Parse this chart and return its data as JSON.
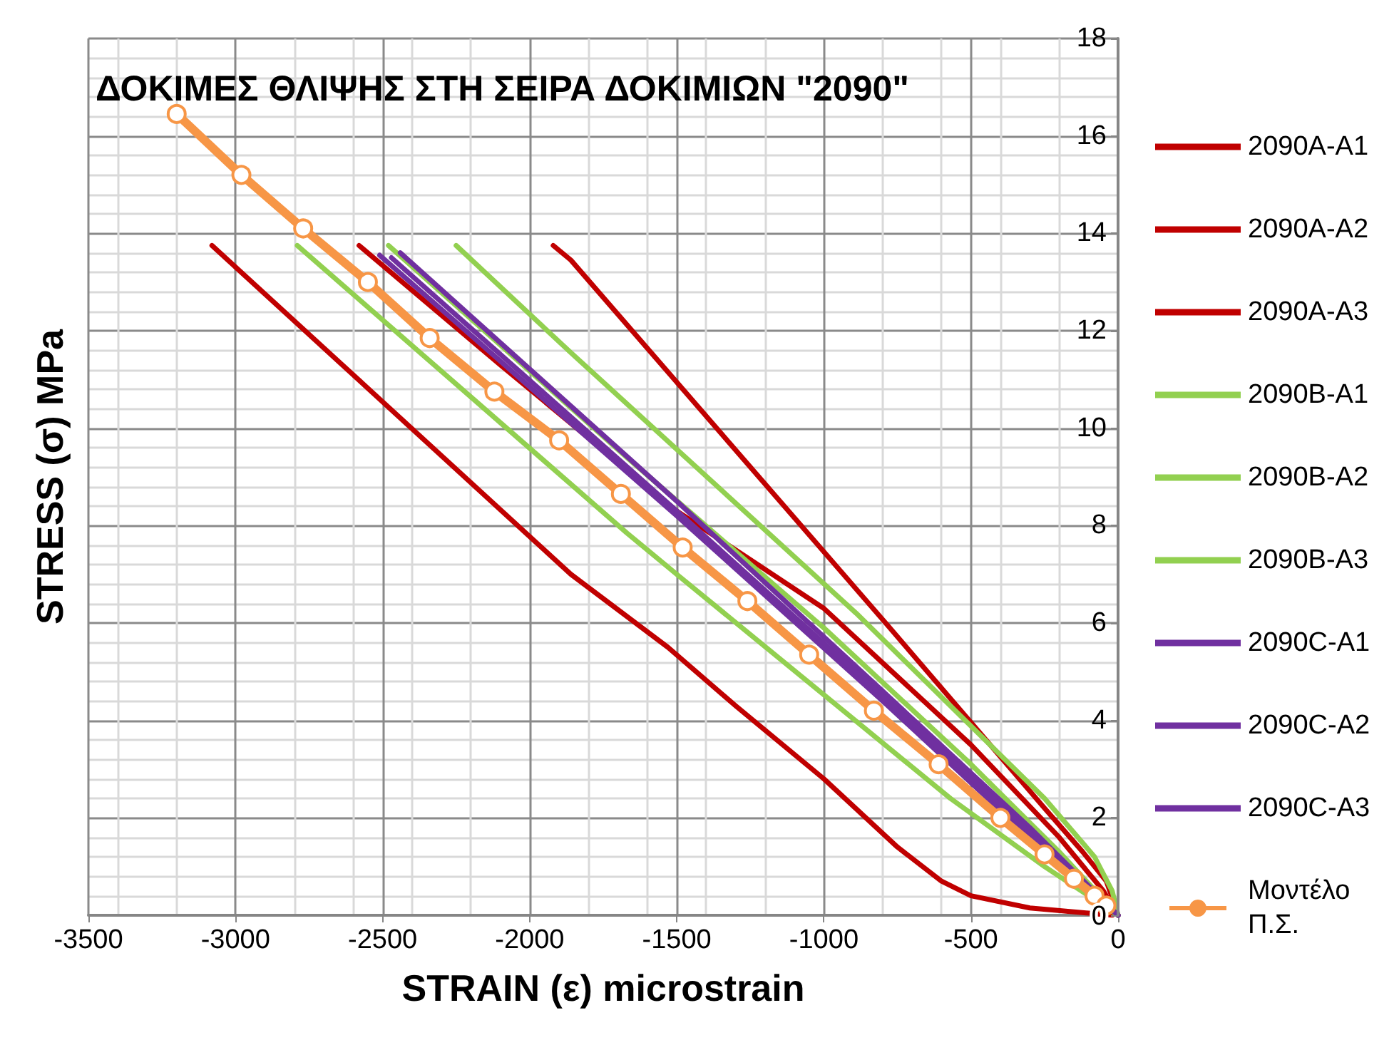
{
  "chart_data": {
    "type": "line",
    "title": "ΔΟΚΙΜΕΣ ΘΛΙΨΗΣ ΣΤΗ ΣΕΙΡΑ ΔΟΚΙΜΙΩΝ \"2090\"",
    "xlabel": "STRAIN (ε) microstrain",
    "ylabel": "STRESS (σ) MPa",
    "xlim": [
      -3500,
      0
    ],
    "xticks": [
      -3500,
      -3000,
      -2500,
      -2000,
      -1500,
      -1000,
      -500,
      0
    ],
    "ylim": [
      0,
      18
    ],
    "yticks": [
      0,
      2,
      4,
      6,
      8,
      10,
      12,
      14,
      16,
      18
    ],
    "grid": true,
    "legend": "right",
    "line_style": "solid",
    "series": [
      {
        "name": "2090A-A1",
        "color": "#c00000",
        "marker": "none",
        "x": [
          -3080,
          -1860,
          -1530,
          -1300,
          -1000,
          -750,
          -600,
          -500,
          -300,
          -20
        ],
        "values": [
          13.75,
          7.0,
          5.5,
          4.3,
          2.8,
          1.4,
          0.7,
          0.4,
          0.15,
          0
        ]
      },
      {
        "name": "2090A-A2",
        "color": "#c00000",
        "marker": "none",
        "x": [
          -1920,
          -1860,
          -790,
          -250,
          -120,
          -40,
          -10,
          0
        ],
        "values": [
          13.75,
          13.45,
          6.0,
          2.2,
          1.3,
          0.7,
          0.2,
          0
        ]
      },
      {
        "name": "2090A-A3",
        "color": "#c00000",
        "marker": "none",
        "x": [
          -2580,
          -2100,
          -1500,
          -1000,
          -500,
          -200,
          -50,
          0
        ],
        "values": [
          13.75,
          11.3,
          8.3,
          6.3,
          3.5,
          1.6,
          0.5,
          0
        ]
      },
      {
        "name": "2090B-A1",
        "color": "#92d050",
        "marker": "none",
        "x": [
          -2480,
          -1670,
          -1000,
          -500,
          -200,
          0
        ],
        "values": [
          13.75,
          9.4,
          5.9,
          3.1,
          1.3,
          0
        ]
      },
      {
        "name": "2090B-A2",
        "color": "#92d050",
        "marker": "none",
        "x": [
          -2790,
          -1670,
          -1490,
          -570,
          -250,
          -100,
          0
        ],
        "values": [
          13.75,
          7.85,
          6.95,
          2.4,
          1.0,
          0.4,
          0
        ]
      },
      {
        "name": "2090B-A3",
        "color": "#92d050",
        "marker": "none",
        "x": [
          -2250,
          -1860,
          -890,
          -250,
          -80,
          -20,
          0
        ],
        "values": [
          13.75,
          11.55,
          6.2,
          2.4,
          1.2,
          0.5,
          0
        ]
      },
      {
        "name": "2090C-A1",
        "color": "#7030a0",
        "marker": "none",
        "x": [
          -2510,
          -1500,
          -800,
          -300,
          0
        ],
        "values": [
          13.55,
          8.2,
          4.4,
          1.6,
          0
        ]
      },
      {
        "name": "2090C-A2",
        "color": "#7030a0",
        "marker": "none",
        "x": [
          -2440,
          -1500,
          -800,
          -300,
          0
        ],
        "values": [
          13.6,
          8.5,
          4.6,
          1.8,
          0
        ]
      },
      {
        "name": "2090C-A3",
        "color": "#7030a0",
        "marker": "none",
        "x": [
          -2470,
          -1500,
          -800,
          -300,
          0
        ],
        "values": [
          13.5,
          8.3,
          4.5,
          1.7,
          0
        ]
      },
      {
        "name": "Μοντέλο Π.Σ.",
        "color": "#f79646",
        "marker": "circle",
        "x": [
          -3200,
          -2980,
          -2770,
          -2550,
          -2340,
          -2120,
          -1900,
          -1690,
          -1480,
          -1260,
          -1050,
          -830,
          -610,
          -400,
          -250,
          -150,
          -80,
          -40
        ],
        "values": [
          16.45,
          15.2,
          14.1,
          13.0,
          11.85,
          10.75,
          9.75,
          8.65,
          7.55,
          6.45,
          5.35,
          4.2,
          3.1,
          2.0,
          1.25,
          0.75,
          0.4,
          0.2
        ]
      }
    ]
  }
}
